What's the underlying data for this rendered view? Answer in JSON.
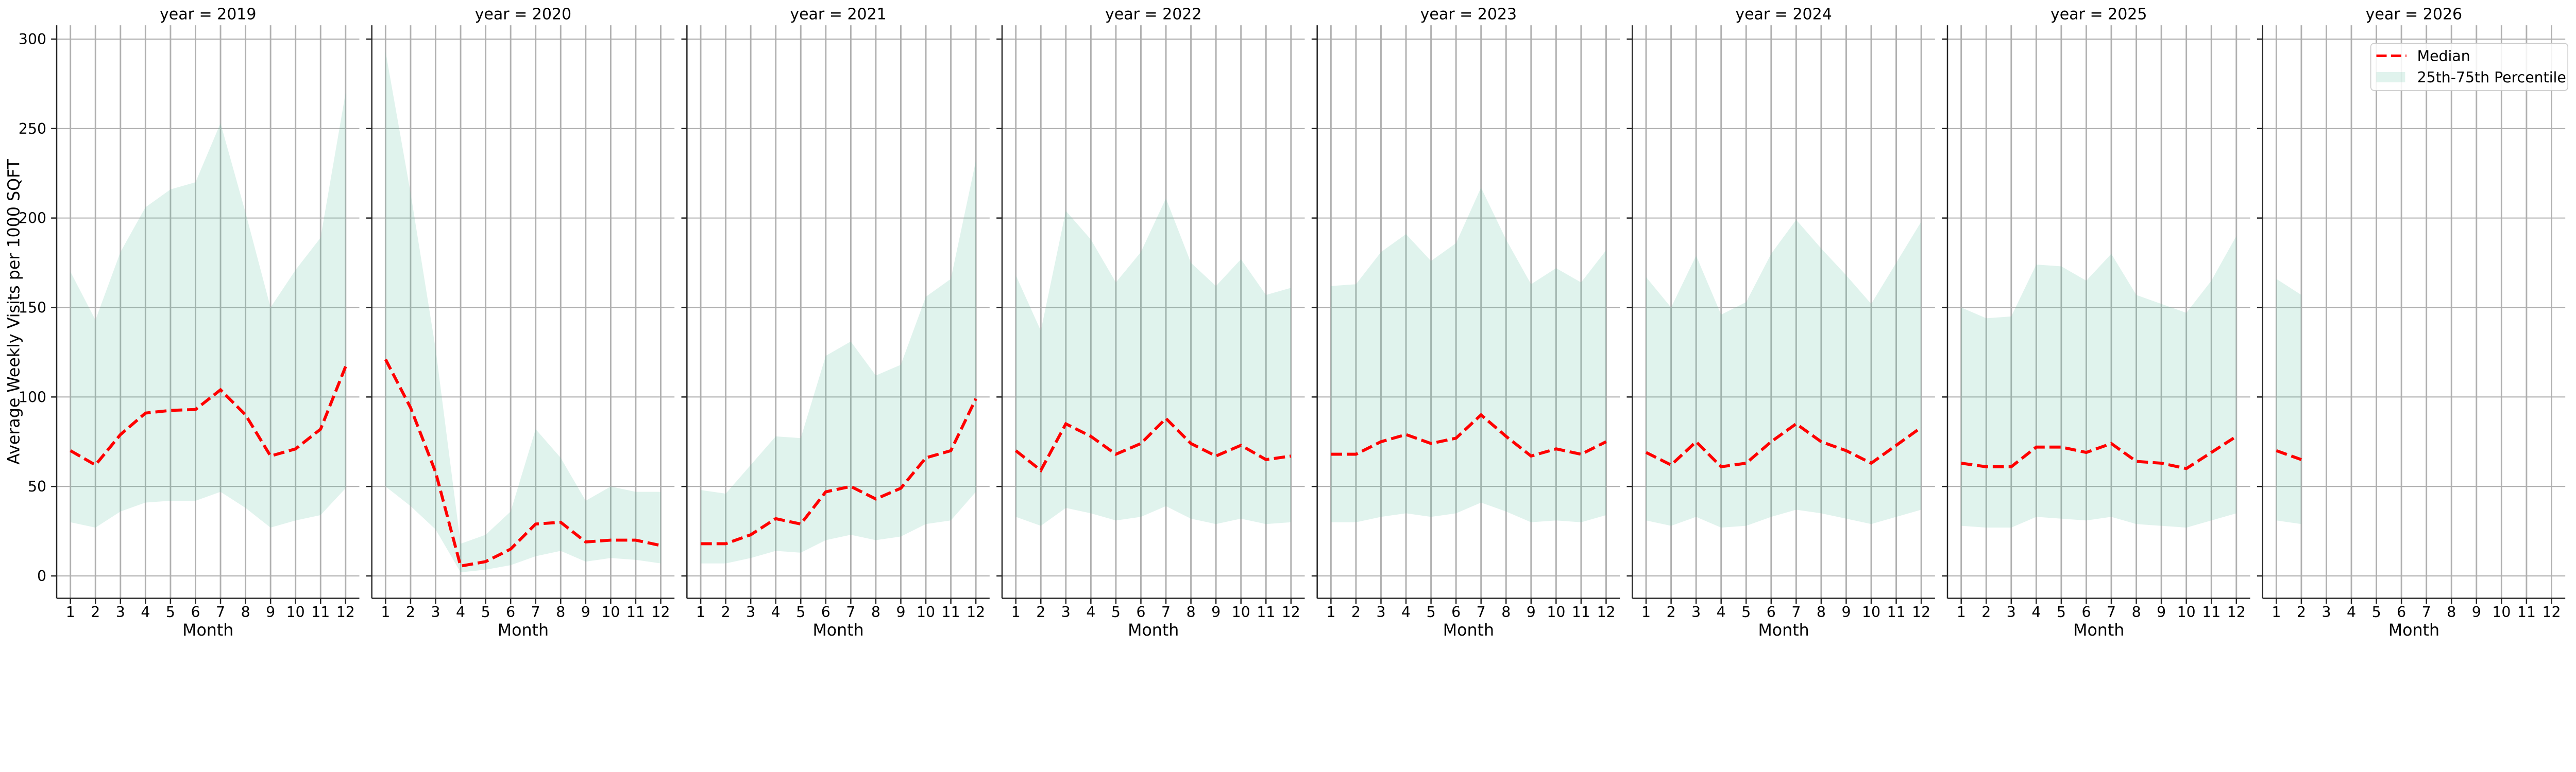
{
  "figure": {
    "ylabel": "Average Weekly Visits per 1000 SQFT",
    "xlabel": "Month",
    "colors": {
      "median": "#ff0000",
      "band": "#66c2a5",
      "grid": "#b0b0b0",
      "axis": "#262626"
    },
    "legend": {
      "placement": "upper-right",
      "items": [
        {
          "label": "Median",
          "style": "dashed-line",
          "color": "#ff0000"
        },
        {
          "label": "25th-75th Percentile",
          "style": "filled-band",
          "color": "#66c2a5"
        }
      ]
    }
  },
  "chart_data": [
    {
      "type": "line",
      "title": "year = 2019",
      "xlabel": "Month",
      "ylabel": "Average Weekly Visits per 1000 SQFT",
      "x": [
        1,
        2,
        3,
        4,
        5,
        6,
        7,
        8,
        9,
        10,
        11,
        12
      ],
      "xticks": [
        1,
        2,
        3,
        4,
        5,
        6,
        7,
        8,
        9,
        10,
        11,
        12
      ],
      "yticks": [
        0,
        50,
        100,
        150,
        200,
        250,
        300
      ],
      "xlim": [
        0.45,
        12.55
      ],
      "ylim": [
        -12.5,
        307.7
      ],
      "grid": true,
      "series": [
        {
          "name": "Median",
          "values": [
            70,
            62,
            79,
            91,
            92.5,
            93,
            104,
            90,
            67,
            71,
            82,
            117
          ]
        },
        {
          "name": "25th-75th Percentile",
          "lower": [
            30,
            27,
            36,
            41,
            42,
            42,
            47,
            38,
            27,
            31,
            34,
            49
          ],
          "upper": [
            170,
            143,
            181,
            206,
            216,
            220,
            253,
            203,
            150,
            171,
            189,
            270
          ]
        }
      ]
    },
    {
      "type": "line",
      "title": "year = 2020",
      "xlabel": "Month",
      "x": [
        1,
        2,
        3,
        4,
        5,
        6,
        7,
        8,
        9,
        10,
        11,
        12
      ],
      "xticks": [
        1,
        2,
        3,
        4,
        5,
        6,
        7,
        8,
        9,
        10,
        11,
        12
      ],
      "yticks": [
        0,
        50,
        100,
        150,
        200,
        250,
        300
      ],
      "xlim": [
        0.45,
        12.55
      ],
      "ylim": [
        -12.5,
        307.7
      ],
      "grid": true,
      "series": [
        {
          "name": "Median",
          "values": [
            121,
            94,
            58,
            5.5,
            8,
            15,
            29,
            30,
            19,
            20,
            20,
            17
          ]
        },
        {
          "name": "25th-75th Percentile",
          "lower": [
            50,
            39,
            26,
            2,
            3.5,
            6,
            11,
            14,
            8,
            10,
            9,
            7
          ],
          "upper": [
            293,
            214,
            127,
            18,
            23,
            36,
            82,
            66,
            42,
            50,
            47,
            47
          ]
        }
      ]
    },
    {
      "type": "line",
      "title": "year = 2021",
      "xlabel": "Month",
      "x": [
        1,
        2,
        3,
        4,
        5,
        6,
        7,
        8,
        9,
        10,
        11,
        12
      ],
      "xticks": [
        1,
        2,
        3,
        4,
        5,
        6,
        7,
        8,
        9,
        10,
        11,
        12
      ],
      "yticks": [
        0,
        50,
        100,
        150,
        200,
        250,
        300
      ],
      "xlim": [
        0.45,
        12.55
      ],
      "ylim": [
        -12.5,
        307.7
      ],
      "grid": true,
      "series": [
        {
          "name": "Median",
          "values": [
            18,
            18,
            23,
            32,
            29,
            47,
            50,
            43,
            49,
            66,
            70,
            99
          ]
        },
        {
          "name": "25th-75th Percentile",
          "lower": [
            7,
            7,
            10,
            14,
            13,
            20,
            23,
            20,
            22,
            29,
            31,
            47
          ],
          "upper": [
            48,
            46,
            62,
            78,
            77,
            123,
            131,
            112,
            118,
            156,
            166,
            232
          ]
        }
      ]
    },
    {
      "type": "line",
      "title": "year = 2022",
      "xlabel": "Month",
      "x": [
        1,
        2,
        3,
        4,
        5,
        6,
        7,
        8,
        9,
        10,
        11,
        12
      ],
      "xticks": [
        1,
        2,
        3,
        4,
        5,
        6,
        7,
        8,
        9,
        10,
        11,
        12
      ],
      "yticks": [
        0,
        50,
        100,
        150,
        200,
        250,
        300
      ],
      "xlim": [
        0.45,
        12.55
      ],
      "ylim": [
        -12.5,
        307.7
      ],
      "grid": true,
      "series": [
        {
          "name": "Median",
          "values": [
            70,
            59,
            85,
            78,
            68,
            74,
            88,
            74,
            67,
            73,
            65,
            67
          ]
        },
        {
          "name": "25th-75th Percentile",
          "lower": [
            33,
            28,
            38,
            35,
            31,
            33,
            39,
            32,
            29,
            32,
            29,
            30
          ],
          "upper": [
            168,
            137,
            204,
            188,
            164,
            181,
            211,
            175,
            162,
            177,
            157,
            161
          ]
        }
      ]
    },
    {
      "type": "line",
      "title": "year = 2023",
      "xlabel": "Month",
      "x": [
        1,
        2,
        3,
        4,
        5,
        6,
        7,
        8,
        9,
        10,
        11,
        12
      ],
      "xticks": [
        1,
        2,
        3,
        4,
        5,
        6,
        7,
        8,
        9,
        10,
        11,
        12
      ],
      "yticks": [
        0,
        50,
        100,
        150,
        200,
        250,
        300
      ],
      "xlim": [
        0.45,
        12.55
      ],
      "ylim": [
        -12.5,
        307.7
      ],
      "grid": true,
      "series": [
        {
          "name": "Median",
          "values": [
            68,
            68,
            75,
            79,
            74,
            77,
            90,
            78,
            67,
            71,
            68,
            75
          ]
        },
        {
          "name": "25th-75th Percentile",
          "lower": [
            30,
            30,
            33,
            35,
            33,
            35,
            41,
            36,
            30,
            31,
            30,
            34
          ],
          "upper": [
            162,
            163,
            181,
            191,
            176,
            186,
            217,
            188,
            163,
            172,
            164,
            182
          ]
        }
      ]
    },
    {
      "type": "line",
      "title": "year = 2024",
      "xlabel": "Month",
      "x": [
        1,
        2,
        3,
        4,
        5,
        6,
        7,
        8,
        9,
        10,
        11,
        12
      ],
      "xticks": [
        1,
        2,
        3,
        4,
        5,
        6,
        7,
        8,
        9,
        10,
        11,
        12
      ],
      "yticks": [
        0,
        50,
        100,
        150,
        200,
        250,
        300
      ],
      "xlim": [
        0.45,
        12.55
      ],
      "ylim": [
        -12.5,
        307.7
      ],
      "grid": true,
      "series": [
        {
          "name": "Median",
          "values": [
            69,
            62,
            75,
            61,
            63,
            75,
            85,
            75,
            70,
            63,
            73,
            83
          ]
        },
        {
          "name": "25th-75th Percentile",
          "lower": [
            31,
            28,
            33,
            27,
            28,
            33,
            37,
            35,
            32,
            29,
            33,
            37
          ],
          "upper": [
            167,
            150,
            179,
            146,
            153,
            180,
            199,
            183,
            168,
            152,
            175,
            198
          ]
        }
      ]
    },
    {
      "type": "line",
      "title": "year = 2025",
      "xlabel": "Month",
      "x": [
        1,
        2,
        3,
        4,
        5,
        6,
        7,
        8,
        9,
        10,
        11,
        12
      ],
      "xticks": [
        1,
        2,
        3,
        4,
        5,
        6,
        7,
        8,
        9,
        10,
        11,
        12
      ],
      "yticks": [
        0,
        50,
        100,
        150,
        200,
        250,
        300
      ],
      "xlim": [
        0.45,
        12.55
      ],
      "ylim": [
        -12.5,
        307.7
      ],
      "grid": true,
      "series": [
        {
          "name": "Median",
          "values": [
            63,
            61,
            61,
            72,
            72,
            69,
            74,
            64,
            63,
            60,
            69,
            78
          ]
        },
        {
          "name": "25th-75th Percentile",
          "lower": [
            28,
            27,
            27,
            33,
            32,
            31,
            33,
            29,
            28,
            27,
            31,
            35
          ],
          "upper": [
            150,
            144,
            145,
            174,
            173,
            165,
            180,
            157,
            152,
            147,
            165,
            190
          ]
        }
      ]
    },
    {
      "type": "line",
      "title": "year = 2026",
      "xlabel": "Month",
      "x": [
        1,
        2
      ],
      "xticks": [
        1,
        2,
        3,
        4,
        5,
        6,
        7,
        8,
        9,
        10,
        11,
        12
      ],
      "yticks": [
        0,
        50,
        100,
        150,
        200,
        250,
        300
      ],
      "xlim": [
        0.45,
        12.55
      ],
      "ylim": [
        -12.5,
        307.7
      ],
      "grid": true,
      "series": [
        {
          "name": "Median",
          "values": [
            70,
            65
          ]
        },
        {
          "name": "25th-75th Percentile",
          "lower": [
            31,
            29
          ],
          "upper": [
            166,
            157
          ]
        }
      ]
    }
  ]
}
